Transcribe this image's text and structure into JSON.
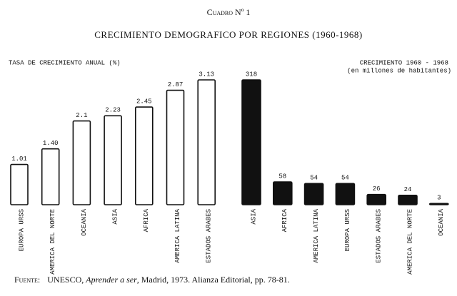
{
  "header": {
    "caption": "Cuadro Nº 1",
    "title": "CRECIMIENTO DEMOGRAFICO POR REGIONES (1960-1968)"
  },
  "chart_data": [
    {
      "type": "bar",
      "y_label": "TASA DE CRECIMIENTO ANUAL (%)",
      "categories": [
        "EUROPA URSS",
        "AMERICA DEL NORTE",
        "OCEANIA",
        "ASIA",
        "AFRICA",
        "AMERICA LATINA",
        "ESTADOS ARABES"
      ],
      "values": [
        1.01,
        1.4,
        2.1,
        2.23,
        2.45,
        2.87,
        3.13
      ],
      "value_labels": [
        "1.01",
        "1.40",
        "2.1",
        "2.23",
        "2.45",
        "2.87",
        "3.13"
      ],
      "color": "#ffffff",
      "edgecolor": "#111111"
    },
    {
      "type": "bar",
      "y_label": "CRECIMIENTO 1960 - 1968",
      "y_sublabel": "(en millones de habitantes)",
      "categories": [
        "ASIA",
        "AFRICA",
        "AMERICA LATINA",
        "EUROPA URSS",
        "ESTADOS ARABES",
        "AMERICA DEL NORTE",
        "OCEANIA"
      ],
      "values": [
        318,
        58,
        54,
        54,
        26,
        24,
        3
      ],
      "color": "#111111",
      "edgecolor": "#111111"
    }
  ],
  "source": {
    "label": "Fuente:",
    "before": "UNESCO, ",
    "italic": "Aprender a ser",
    "after": ", Madrid, 1973. Alianza Editorial, pp. 78-81."
  }
}
